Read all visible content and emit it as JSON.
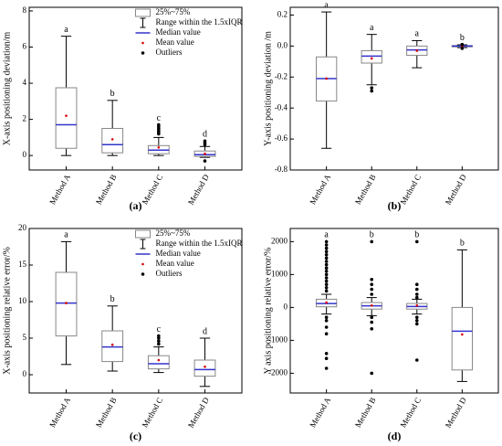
{
  "chart_data": [
    {
      "type": "box",
      "panel": "(a)",
      "ylabel": "X-axis positioning deviation/m",
      "categories": [
        "Method A",
        "Method B",
        "Method C",
        "Method D"
      ],
      "letters": [
        "a",
        "b",
        "c",
        "d"
      ],
      "ylim": [
        -0.8,
        8.2
      ],
      "yticks": [
        0,
        2,
        4,
        6,
        8
      ],
      "box_color": "#888888",
      "median_color": "#3333cc",
      "mean_color": "#dd0000",
      "legend": [
        "25%~75%",
        "Range within the 1.5xIQR",
        "Median value",
        "Mean value",
        "Outliers"
      ],
      "boxes": [
        {
          "whisker_low": 0,
          "q1": 0.4,
          "median": 1.7,
          "q3": 3.75,
          "whisker_high": 6.6,
          "mean": 2.2,
          "outliers": []
        },
        {
          "whisker_low": 0,
          "q1": 0.15,
          "median": 0.6,
          "q3": 1.5,
          "whisker_high": 3.05,
          "mean": 0.9,
          "outliers": []
        },
        {
          "whisker_low": 0,
          "q1": 0.1,
          "median": 0.3,
          "q3": 0.55,
          "whisker_high": 1.0,
          "mean": 0.45,
          "outliers": [
            1.2,
            1.3,
            1.4,
            1.5,
            1.6,
            1.7
          ]
        },
        {
          "whisker_low": -0.1,
          "q1": -0.05,
          "median": 0.05,
          "q3": 0.25,
          "whisker_high": 0.5,
          "mean": 0.1,
          "outliers": [
            0.6,
            0.7,
            0.8,
            -0.3
          ]
        }
      ]
    },
    {
      "type": "box",
      "panel": "(b)",
      "ylabel": "Y-axis positioning deviation /m",
      "categories": [
        "Method A",
        "Method B",
        "Method C",
        "Method D"
      ],
      "letters": [
        "a",
        "a",
        "a",
        "b"
      ],
      "ylim": [
        -0.8,
        0.25
      ],
      "yticks": [
        -0.8,
        -0.6,
        -0.4,
        -0.2,
        {
          "value": 0,
          "label": "0.0"
        },
        0.2
      ],
      "box_color": "#888888",
      "median_color": "#3333cc",
      "mean_color": "#dd0000",
      "boxes": [
        {
          "whisker_low": -0.66,
          "q1": -0.355,
          "median": -0.21,
          "q3": -0.07,
          "whisker_high": 0.22,
          "mean": -0.21,
          "outliers": []
        },
        {
          "whisker_low": -0.25,
          "q1": -0.11,
          "median": -0.065,
          "q3": -0.03,
          "whisker_high": 0.075,
          "mean": -0.08,
          "outliers": [
            -0.27,
            -0.29
          ]
        },
        {
          "whisker_low": -0.14,
          "q1": -0.06,
          "median": -0.025,
          "q3": 0.0,
          "whisker_high": 0.035,
          "mean": -0.03,
          "outliers": []
        },
        {
          "whisker_low": -0.01,
          "q1": -0.005,
          "median": 0,
          "q3": 0.003,
          "whisker_high": 0.008,
          "mean": 0,
          "outliers": [
            0.01,
            -0.015
          ]
        }
      ]
    },
    {
      "type": "box",
      "panel": "(c)",
      "ylabel": "X-axis positioning relative error/%",
      "categories": [
        "Method A",
        "Method B",
        "Method C",
        "Method D"
      ],
      "letters": [
        "a",
        "b",
        "c",
        "d"
      ],
      "ylim": [
        -2.5,
        20
      ],
      "yticks": [
        0,
        5,
        10,
        15,
        20
      ],
      "box_color": "#888888",
      "median_color": "#3333cc",
      "mean_color": "#dd0000",
      "legend": [
        "25%~75%",
        "Range within the 1.5xIQR",
        "Median value",
        "Mean value",
        "Outliers"
      ],
      "boxes": [
        {
          "whisker_low": 1.4,
          "q1": 5.3,
          "median": 9.8,
          "q3": 14,
          "whisker_high": 18.2,
          "mean": 9.8,
          "outliers": []
        },
        {
          "whisker_low": 0.5,
          "q1": 1.8,
          "median": 3.8,
          "q3": 6,
          "whisker_high": 9.4,
          "mean": 4.1,
          "outliers": []
        },
        {
          "whisker_low": 0.3,
          "q1": 0.8,
          "median": 1.5,
          "q3": 2.6,
          "whisker_high": 3.8,
          "mean": 2.0,
          "outliers": [
            4.2,
            4.6,
            5.0,
            5.3
          ]
        },
        {
          "whisker_low": -1.6,
          "q1": -0.2,
          "median": 0.7,
          "q3": 2,
          "whisker_high": 5,
          "mean": 1.1,
          "outliers": []
        }
      ]
    },
    {
      "type": "box",
      "panel": "(d)",
      "ylabel": "Y axis positioning relative error/%",
      "categories": [
        "Method A",
        "Method B",
        "Method C",
        "Method D"
      ],
      "letters": [
        "a",
        "b",
        "b",
        "b"
      ],
      "ylim": [
        -2600,
        2400
      ],
      "yticks": [
        -2000,
        -1000,
        0,
        1000,
        2000
      ],
      "box_color": "#888888",
      "median_color": "#3333cc",
      "mean_color": "#dd0000",
      "boxes": [
        {
          "whisker_low": -200,
          "q1": 20,
          "median": 120,
          "q3": 250,
          "whisker_high": 400,
          "mean": 150,
          "outliers": [
            500,
            600,
            700,
            800,
            900,
            1000,
            1100,
            1200,
            1300,
            1400,
            1500,
            1600,
            1700,
            1800,
            1900,
            2000,
            -300,
            -400,
            -600,
            -800,
            -1400,
            -1550,
            -1850
          ]
        },
        {
          "whisker_low": -250,
          "q1": -50,
          "median": 50,
          "q3": 150,
          "whisker_high": 300,
          "mean": 60,
          "outliers": [
            2000,
            850,
            700,
            550,
            400,
            -300,
            -450,
            -650,
            -2000
          ]
        },
        {
          "whisker_low": -200,
          "q1": -50,
          "median": 30,
          "q3": 120,
          "whisker_high": 250,
          "mean": 60,
          "outliers": [
            2000,
            700,
            550,
            400,
            300,
            -300,
            -400,
            -500,
            -1600
          ]
        },
        {
          "whisker_low": -2250,
          "q1": -1900,
          "median": -720,
          "q3": 0,
          "whisker_high": 1750,
          "mean": -820,
          "outliers": []
        }
      ]
    }
  ]
}
